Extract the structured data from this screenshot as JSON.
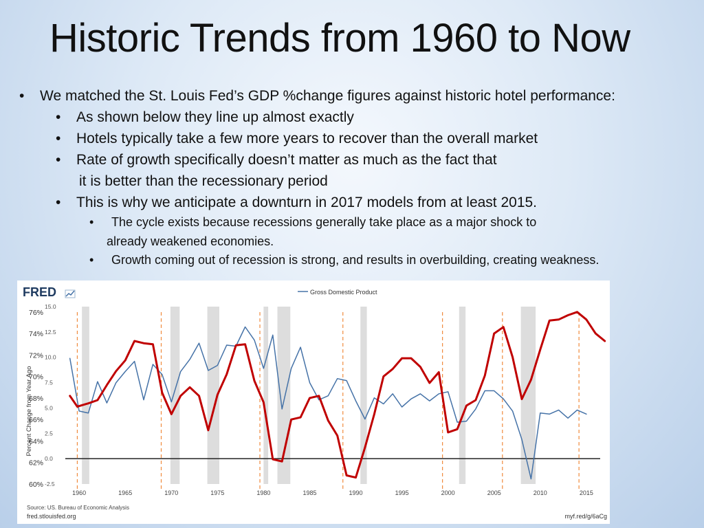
{
  "slide": {
    "title": "Historic Trends from 1960 to Now",
    "bullets": {
      "b1": "We matched the St. Louis Fed’s GDP %change figures against historic hotel performance:",
      "b2": "As shown below they line up almost exactly",
      "b3": "Hotels typically take a few more years to recover than the overall market",
      "b4a": "Rate of growth specifically doesn’t matter as much as the fact that",
      "b4b": "it is better than the recessionary period",
      "b5": "This is why we anticipate a downturn in 2017 models from at least 2015.",
      "b6a": "The cycle exists because recessions generally take place as a major shock to",
      "b6b": "already weakened economies.",
      "b7": "Growth coming out of recession is strong, and results in overbuilding, creating weakness."
    },
    "bullet_glyph": "•"
  },
  "chart_data": {
    "type": "line",
    "source_logo": "FRED",
    "legend": "Gross Domestic Product",
    "ylabel": "Percent Change from Year Ago",
    "source_note": "Source: US. Bureau of Economic Analysis",
    "site": "fred.stlouisfed.org",
    "short_link": "myf.red/g/6aCg",
    "xlim": [
      1958.5,
      2016.5
    ],
    "ylim": [
      -2.5,
      15.0
    ],
    "x_ticks": [
      1960,
      1965,
      1970,
      1975,
      1980,
      1985,
      1990,
      1995,
      2000,
      2005,
      2010,
      2015
    ],
    "y_ticks_left": [
      "15.0",
      "12.5",
      "10.0",
      "7.5",
      "5.0",
      "2.5",
      "0.0",
      "-2.5"
    ],
    "y_ticks_left_values": [
      15.0,
      12.5,
      10.0,
      7.5,
      5.0,
      2.5,
      0.0,
      -2.5
    ],
    "y_ticks_overlay": [
      "76%",
      "74%",
      "72%",
      "70%",
      "68%",
      "66%",
      "64%",
      "62%",
      "60%"
    ],
    "y_ticks_overlay_values": [
      76,
      74,
      72,
      70,
      68,
      66,
      64,
      62,
      60
    ],
    "overlay_ylim": [
      60,
      76.5
    ],
    "recessions": [
      [
        1960.3,
        1961.1
      ],
      [
        1969.9,
        1970.9
      ],
      [
        1973.9,
        1975.2
      ],
      [
        1980.0,
        1980.5
      ],
      [
        1981.5,
        1982.9
      ],
      [
        1990.5,
        1991.2
      ],
      [
        2001.2,
        2001.9
      ],
      [
        2007.9,
        2009.5
      ]
    ],
    "dashed_markers": [
      1959.8,
      1968.9,
      1979.6,
      1988.6,
      1999.4,
      2005.9,
      2014.2
    ],
    "series": [
      {
        "name": "Gross Domestic Product",
        "color": "#4572a7",
        "x": [
          1959.0,
          1960.0,
          1961.0,
          1962.0,
          1963.0,
          1964.0,
          1965.0,
          1966.0,
          1967.0,
          1968.0,
          1969.0,
          1970.0,
          1971.0,
          1972.0,
          1973.0,
          1974.0,
          1975.0,
          1976.0,
          1977.0,
          1978.0,
          1979.0,
          1980.0,
          1981.0,
          1982.0,
          1983.0,
          1984.0,
          1985.0,
          1986.0,
          1987.0,
          1988.0,
          1989.0,
          1990.0,
          1991.0,
          1992.0,
          1993.0,
          1994.0,
          1995.0,
          1996.0,
          1997.0,
          1998.0,
          1999.0,
          2000.0,
          2001.0,
          2002.0,
          2003.0,
          2004.0,
          2005.0,
          2006.0,
          2007.0,
          2008.0,
          2009.0,
          2010.0,
          2011.0,
          2012.0,
          2013.0,
          2014.0,
          2015.0
        ],
        "values": [
          9.9,
          4.7,
          4.5,
          7.6,
          5.5,
          7.5,
          8.6,
          9.6,
          5.8,
          9.3,
          8.3,
          5.6,
          8.6,
          9.8,
          11.4,
          8.7,
          9.2,
          11.2,
          11.1,
          13.0,
          11.7,
          8.9,
          12.2,
          4.9,
          8.9,
          11.0,
          7.5,
          5.8,
          6.2,
          7.9,
          7.7,
          5.7,
          3.9,
          6.0,
          5.4,
          6.4,
          5.1,
          5.9,
          6.4,
          5.7,
          6.4,
          6.6,
          3.6,
          3.7,
          4.9,
          6.7,
          6.7,
          5.9,
          4.7,
          1.9,
          -2.0,
          4.5,
          4.4,
          4.8,
          4.0,
          4.8,
          4.4
        ]
      },
      {
        "name": "",
        "color": "#c00000",
        "x": [
          1959.0,
          1959.8,
          1961.0,
          1962.0,
          1963.0,
          1964.0,
          1965.0,
          1966.0,
          1967.0,
          1968.0,
          1969.0,
          1970.0,
          1971.0,
          1972.0,
          1973.0,
          1974.0,
          1975.0,
          1976.0,
          1977.0,
          1978.0,
          1979.0,
          1980.0,
          1981.0,
          1982.0,
          1983.0,
          1984.0,
          1985.0,
          1986.0,
          1987.0,
          1988.0,
          1989.0,
          1990.0,
          1991.0,
          1992.0,
          1993.0,
          1994.0,
          1995.0,
          1996.0,
          1997.0,
          1998.0,
          1999.0,
          2000.0,
          2001.0,
          2002.0,
          2003.0,
          2004.0,
          2005.0,
          2006.0,
          2007.0,
          2008.0,
          2009.0,
          2010.0,
          2011.0,
          2012.0,
          2013.0,
          2014.0,
          2015.0,
          2016.0,
          2017.0,
          2018.0,
          2019.0,
          2020.0
        ],
        "values": [
          68.2,
          67.2,
          67.5,
          67.8,
          69.2,
          70.5,
          71.5,
          73.3,
          73.1,
          73.0,
          68.5,
          66.5,
          68.2,
          69.0,
          68.2,
          65.0,
          68.3,
          70.2,
          72.9,
          73.0,
          69.6,
          67.6,
          62.3,
          62.1,
          66.0,
          66.2,
          68.0,
          68.2,
          65.9,
          64.5,
          60.8,
          60.6,
          63.4,
          66.5,
          70.0,
          70.7,
          71.7,
          71.7,
          70.9,
          69.4,
          70.4,
          64.8,
          65.1,
          67.3,
          67.8,
          70.1,
          74.0,
          74.6,
          71.8,
          67.9,
          69.7,
          72.5,
          75.2,
          75.3,
          75.7,
          76.0,
          75.3,
          74.0,
          73.3,
          74.0,
          74.7,
          74.6
        ]
      }
    ]
  }
}
